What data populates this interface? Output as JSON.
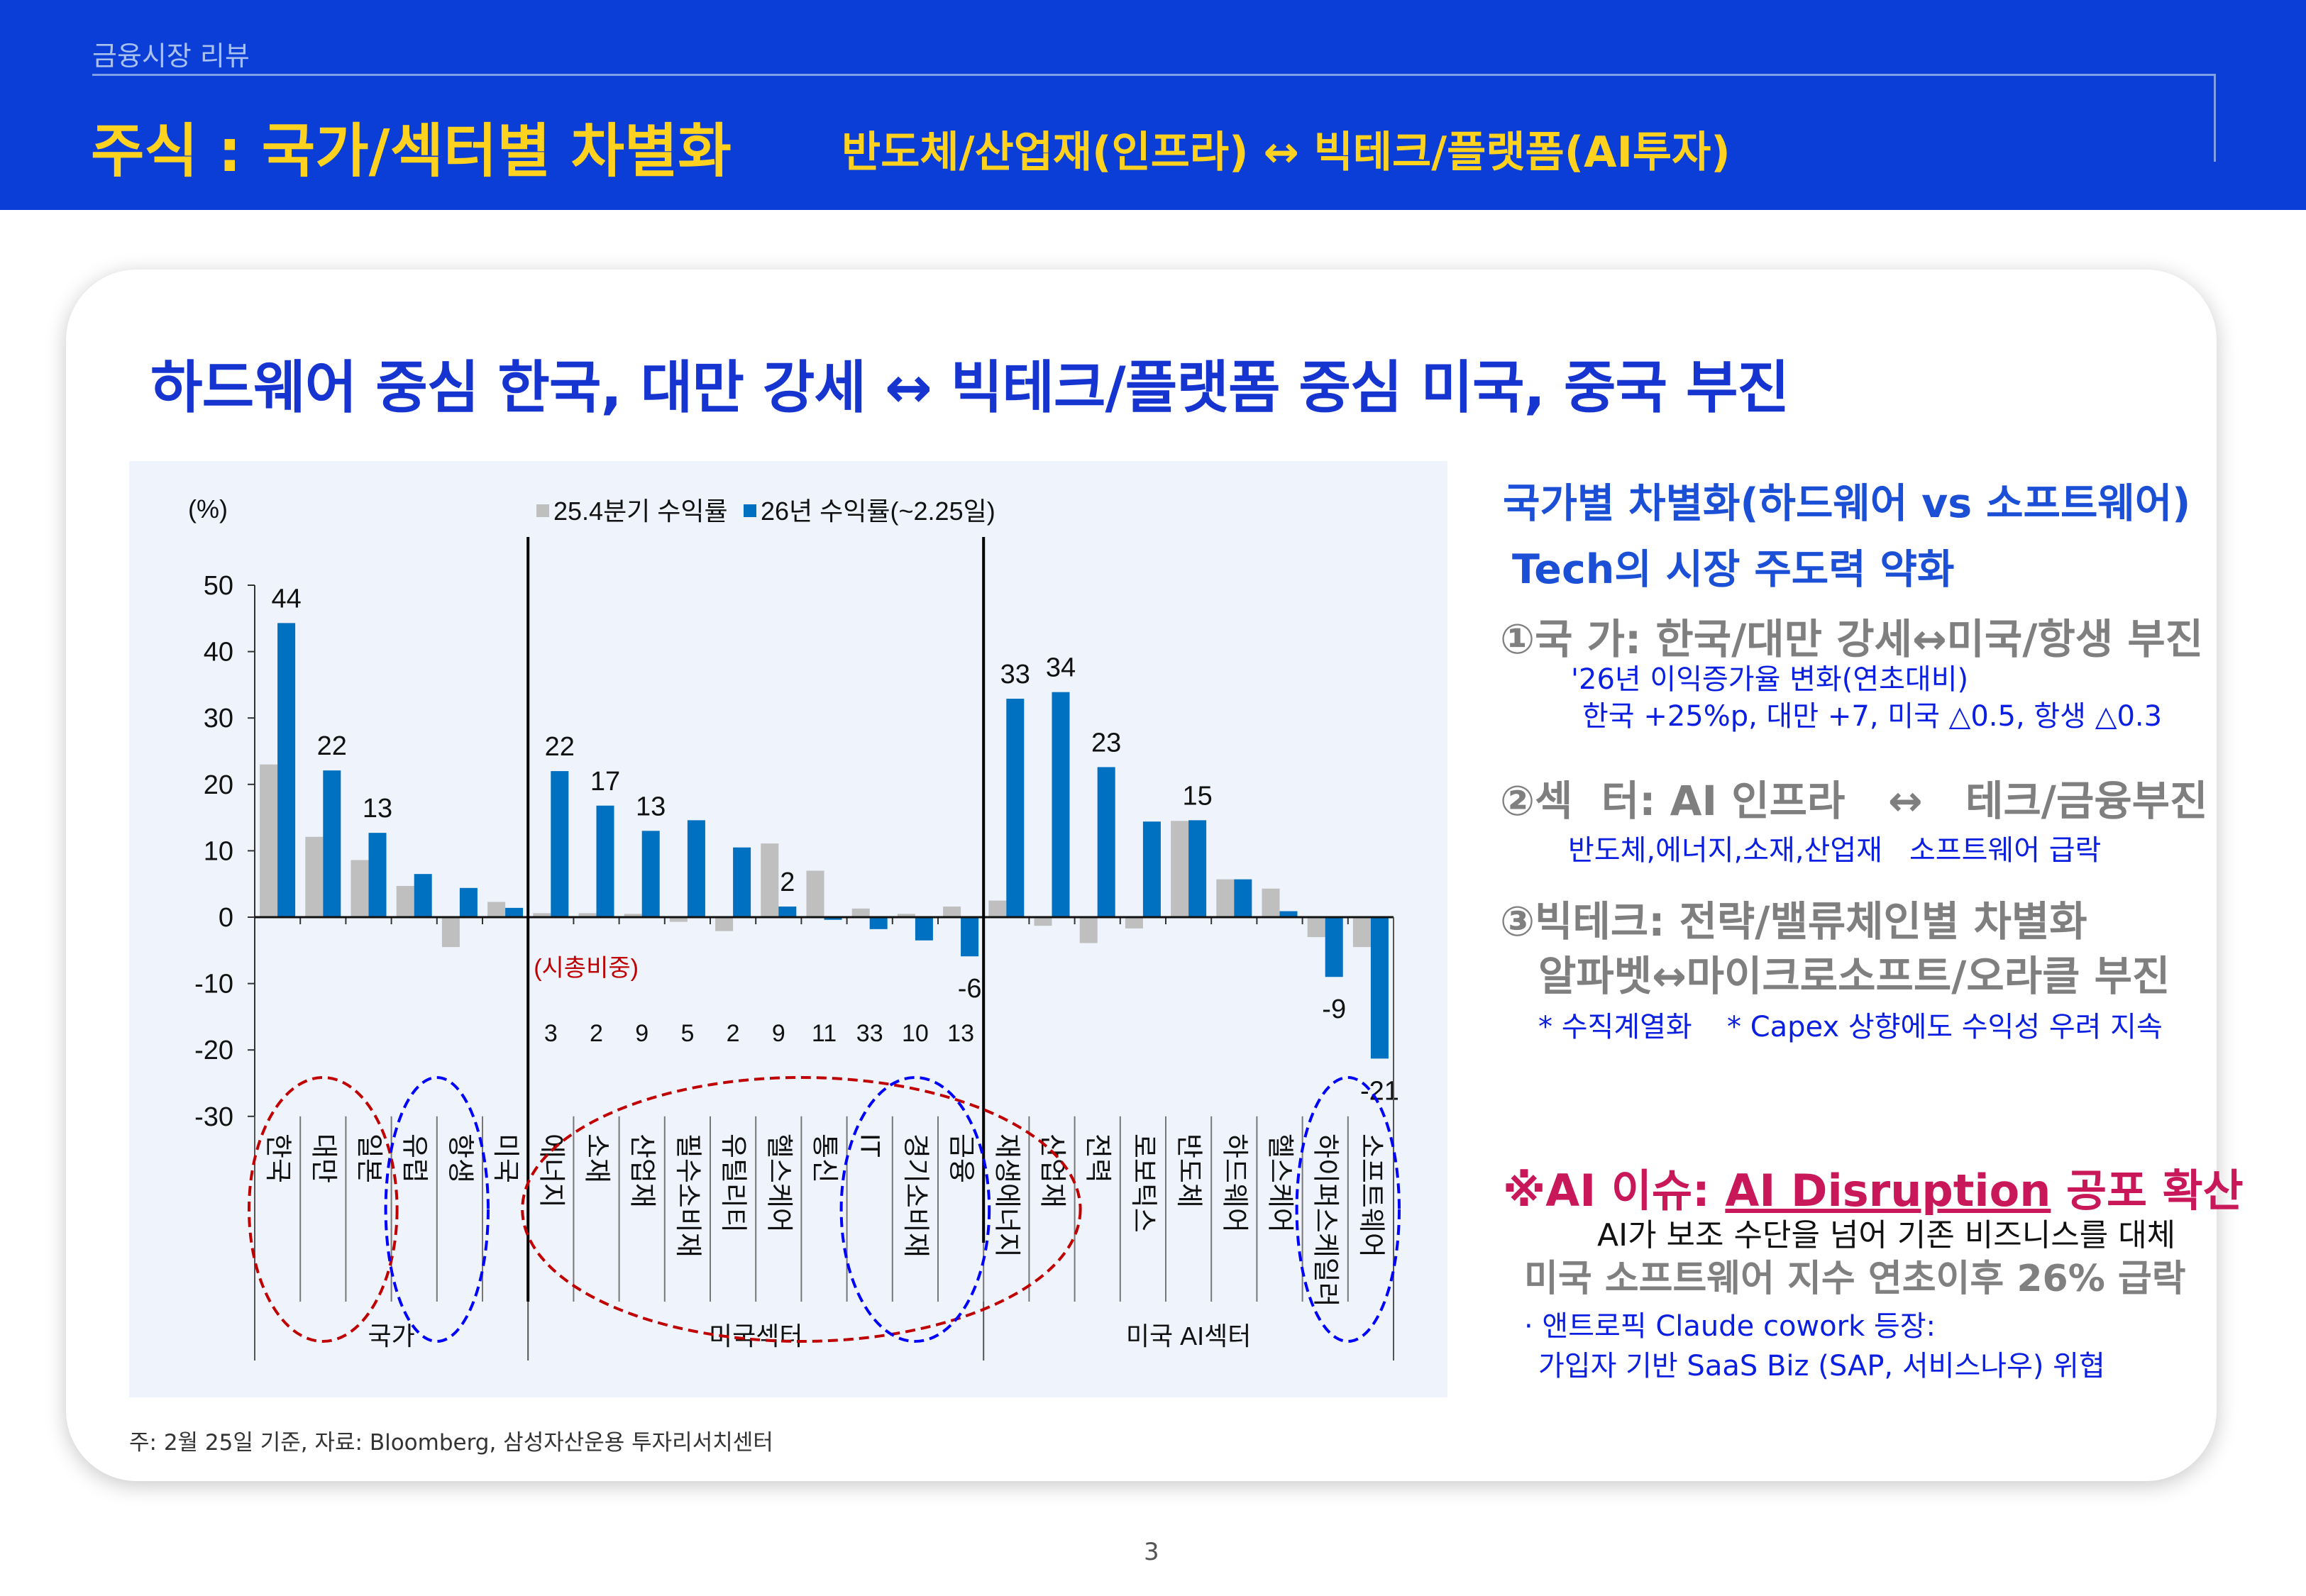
{
  "header": {
    "section": "금융시장 리뷰",
    "title": "주식 : 국가/섹터별 차별화",
    "subtitle": "반도체/산업재(인프라) ↔ 빅테크/플랫폼(AI투자)",
    "background_color": "#0a3ed6",
    "title_color": "#ffd21f"
  },
  "headline": "하드웨어 중심 한국, 대만 강세 ↔ 빅테크/플랫폼 중심 미국, 중국 부진",
  "chart_data": {
    "type": "bar",
    "unit_label": "(%)",
    "ylim": [
      -30,
      50
    ],
    "yticks": [
      50,
      40,
      30,
      20,
      10,
      0,
      -10,
      -20,
      -30
    ],
    "grid": false,
    "legend_position": "top",
    "groups": [
      {
        "name": "국가",
        "count": 6
      },
      {
        "name": "미국섹터",
        "count": 10
      },
      {
        "name": "미국 AI섹터",
        "count": 9
      }
    ],
    "categories": [
      "한국",
      "대만",
      "일본",
      "유럽",
      "항생",
      "미국",
      "에너지",
      "소재",
      "산업재",
      "필수소비재",
      "유틸리티",
      "헬스케어",
      "통신",
      "IT",
      "경기소비재",
      "금융",
      "재생에너지",
      "산업재",
      "전력",
      "로보틱스",
      "반도체",
      "하드웨어",
      "헬스케어",
      "하이퍼스케일러",
      "소프트웨어"
    ],
    "series": [
      {
        "name": "25.4분기 수익률",
        "color": "#bfbfbf",
        "values": [
          23.0,
          12.1,
          8.6,
          4.7,
          -4.5,
          2.3,
          0.6,
          0.6,
          0.5,
          -0.7,
          -2.1,
          11.1,
          7.0,
          1.3,
          0.5,
          1.6,
          2.5,
          -1.3,
          -3.9,
          -1.7,
          14.5,
          5.7,
          4.3,
          -3.0,
          -4.5
        ]
      },
      {
        "name": "26년 수익률(~2.25일)",
        "color": "#0070c0",
        "values": [
          44.3,
          22.1,
          12.7,
          6.5,
          4.4,
          1.4,
          22.0,
          16.8,
          13.0,
          14.6,
          10.5,
          1.6,
          -0.4,
          -1.8,
          -3.5,
          -5.9,
          32.9,
          33.9,
          22.6,
          14.4,
          14.6,
          5.7,
          0.9,
          -9.0,
          -21.3
        ]
      }
    ],
    "data_labels": [
      "44",
      "22",
      "13",
      null,
      null,
      null,
      "22",
      "17",
      "13",
      null,
      null,
      "2",
      null,
      null,
      null,
      "-6",
      "33",
      "34",
      "23",
      null,
      "15",
      null,
      null,
      "-9",
      "-21"
    ],
    "market_cap_weight": {
      "label": "(시총비중)",
      "values": [
        null,
        null,
        null,
        null,
        null,
        null,
        "3",
        "2",
        "9",
        "5",
        "2",
        "9",
        "11",
        "33",
        "10",
        "13",
        null,
        null,
        null,
        null,
        null,
        null,
        null,
        null,
        null
      ]
    },
    "highlights": [
      {
        "categories": [
          "한국",
          "일본"
        ],
        "color": "#c00000"
      },
      {
        "categories": [
          "유럽",
          "항생"
        ],
        "color": "#0000ff"
      },
      {
        "categories": [
          "에너지",
          "산업재"
        ],
        "color": "#c00000"
      },
      {
        "categories": [
          "IT",
          "금융"
        ],
        "color": "#0000ff"
      },
      {
        "categories": [
          "하이퍼스케일러",
          "소프트웨어"
        ],
        "color": "#0000ff"
      }
    ]
  },
  "right_panel": {
    "heading1": "국가별 차별화(하드웨어 vs 소프트웨어)",
    "heading2": "Tech의 시장 주도력 약화",
    "point1": "①국  가: 한국/대만 강세↔미국/항생 부진",
    "point1_sub1": "'26년 이익증가율 변화(연초대비)",
    "point1_sub2": "한국 +25%p, 대만 +7, 미국 △0.5, 항생 △0.3",
    "point2": "②섹  터: AI 인프라   ↔   테크/금융부진",
    "point2_sub_left": "반도체,에너지,소재,산업재",
    "point2_sub_right": "소프트웨어 급락",
    "point3": "③빅테크: 전략/밸류체인별 차별화",
    "point3_line2": "알파벳↔마이크로소프트/오라클 부진",
    "point3_note1": "* 수직계열화",
    "point3_note2": "* Capex 상향에도 수익성 우려 지속",
    "ai_issue_prefix": "※AI 이슈: ",
    "ai_issue_underlined": "AI Disruption",
    "ai_issue_suffix": " 공포 확산",
    "ai_desc": "AI가 보조 수단을 넘어 기존 비즈니스를 대체",
    "ai_drop": "미국 소프트웨어 지수 연초이후 26% 급락",
    "ai_bullet1": "· 앤트로픽 Claude cowork 등장:",
    "ai_bullet2": "가입자 기반 SaaS Biz (SAP, 서비스나우) 위협",
    "accent_color": "#c8185a"
  },
  "footnote": "주: 2월 25일 기준, 자료: Bloomberg, 삼성자산운용 투자리서치센터",
  "page_number": "3"
}
